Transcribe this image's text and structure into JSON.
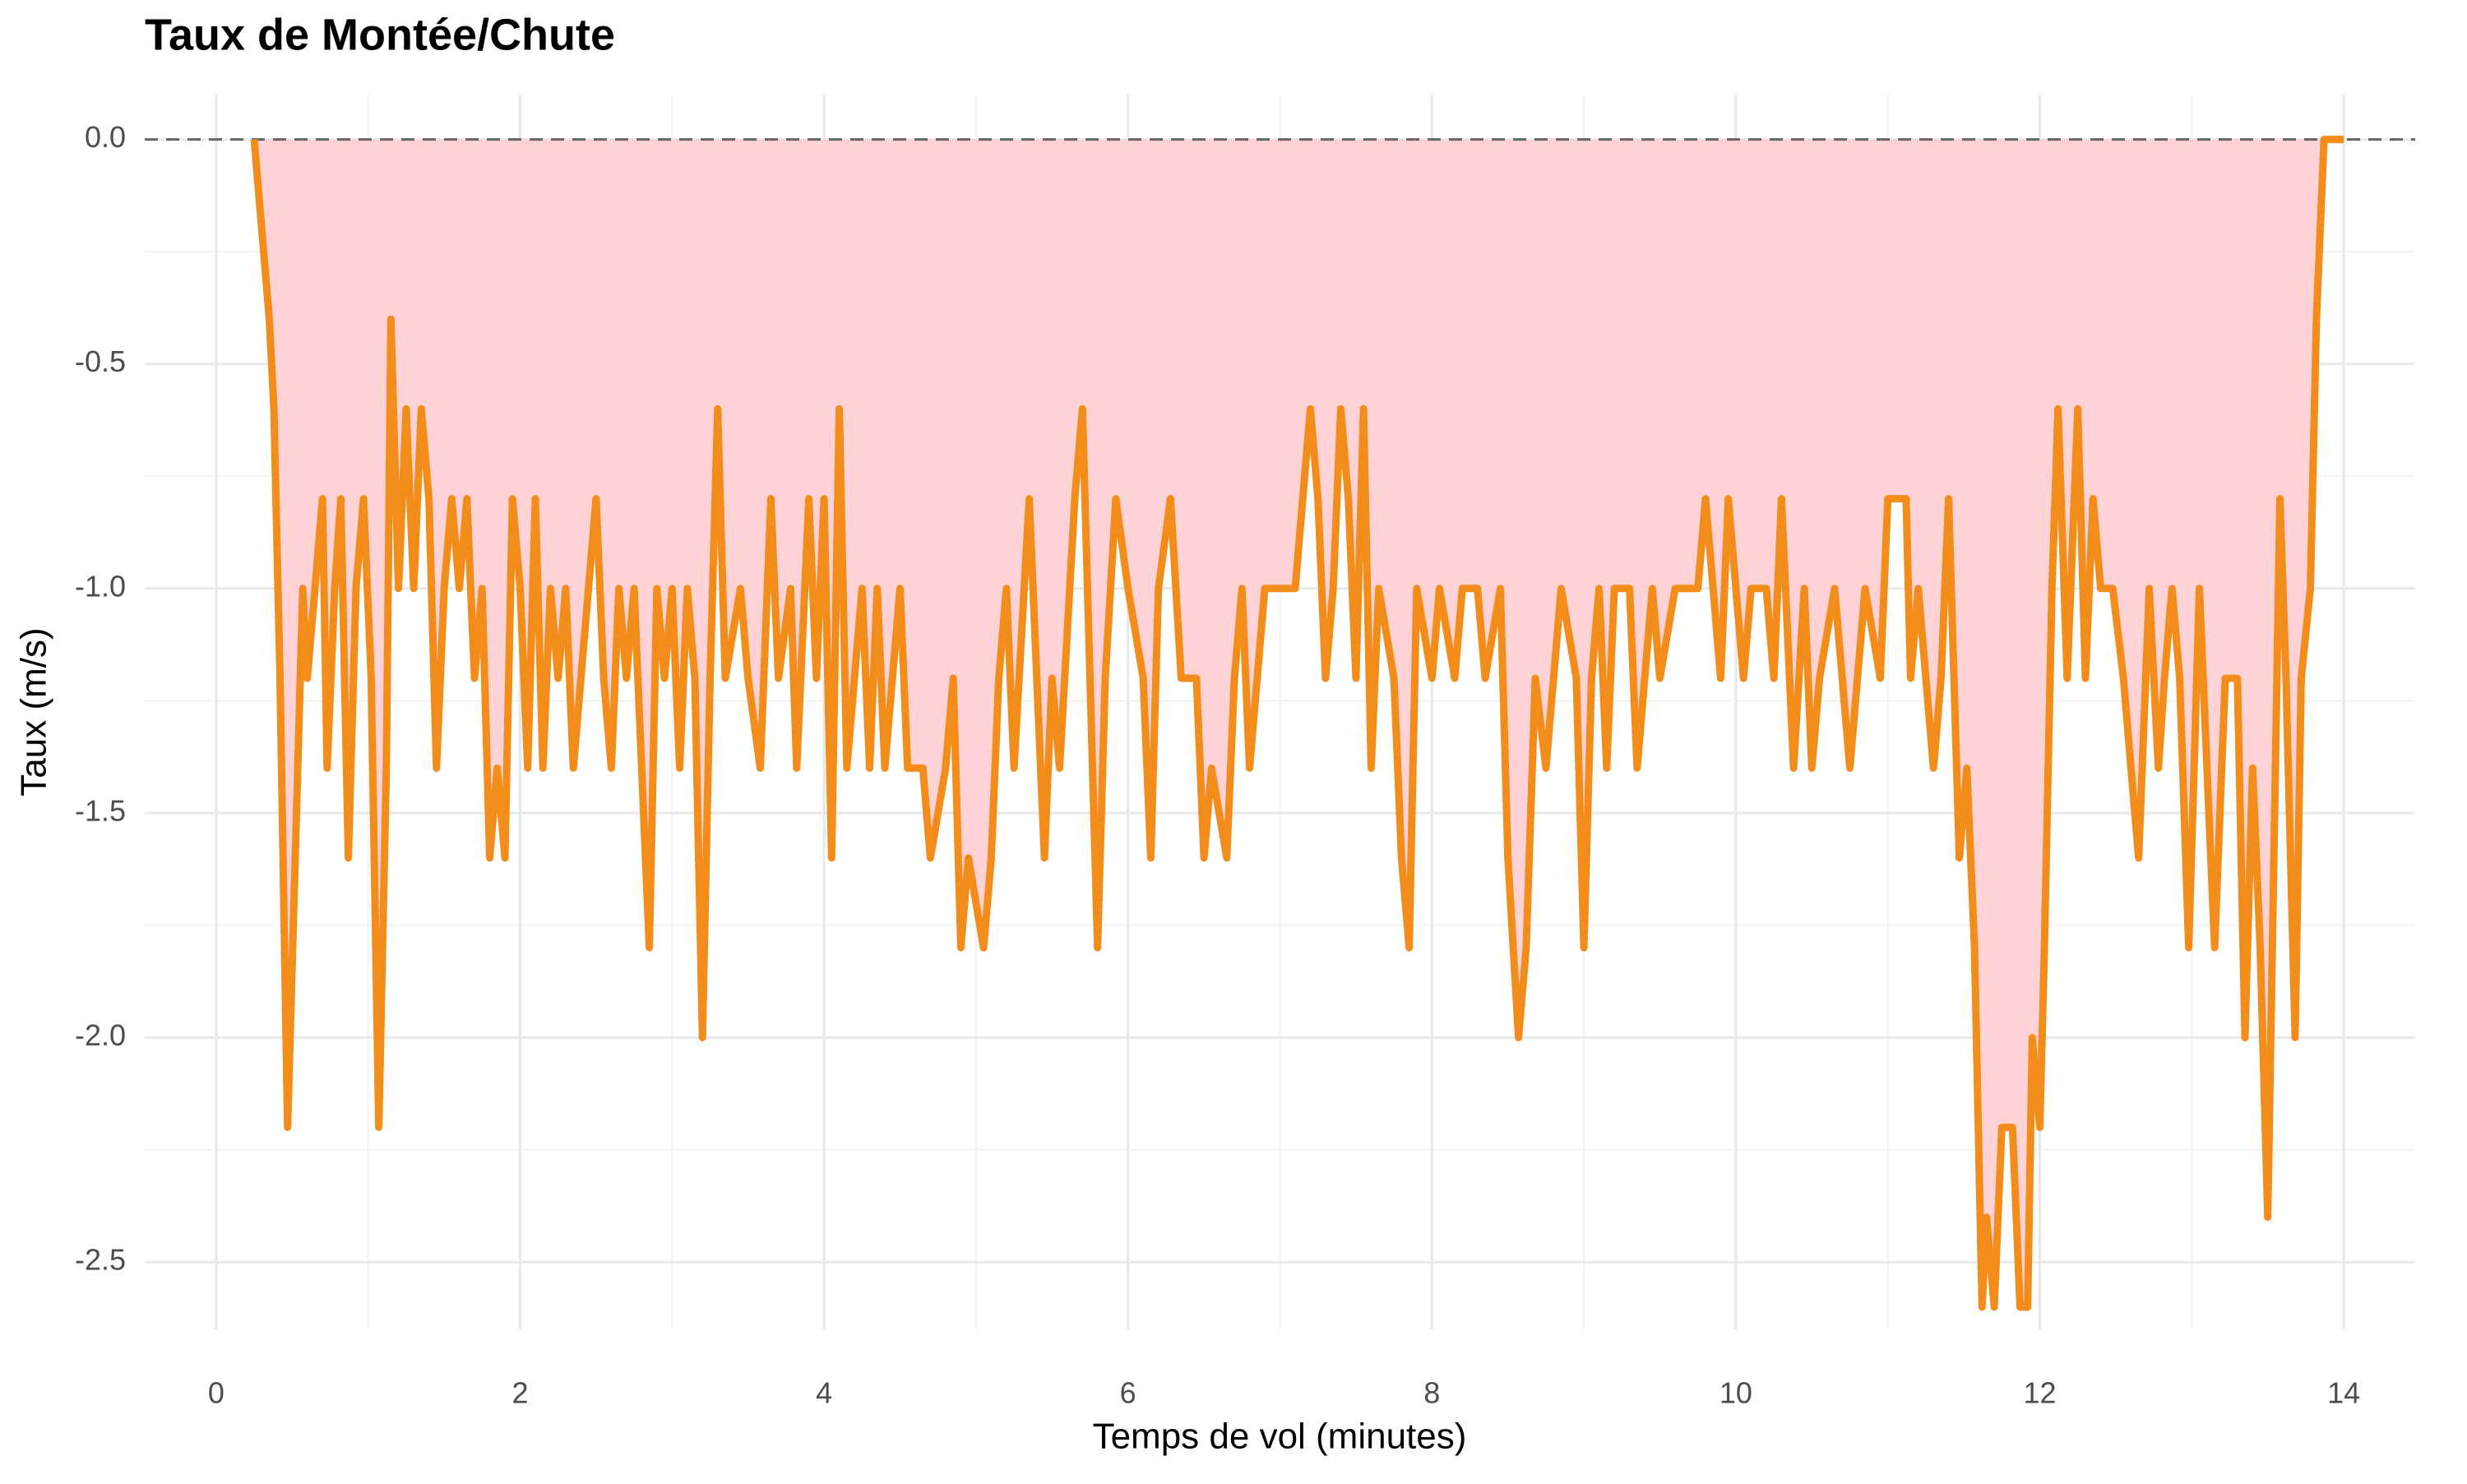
{
  "chart_data": {
    "type": "area",
    "title": "Taux de Montée/Chute",
    "x_label": "Temps de vol (minutes)",
    "y_label": "Taux (m/s)",
    "color": "#f28c1a",
    "fill_color": "#ffd3d6",
    "hline": 0,
    "grid": true,
    "xlim": [
      -0.47,
      14.47
    ],
    "ylim": [
      -2.65,
      0.1
    ],
    "xticks": [
      0,
      2,
      4,
      6,
      8,
      10,
      12,
      14
    ],
    "yticks": [
      {
        "value": 0,
        "label": "0.0"
      },
      -0.5,
      {
        "value": -1,
        "label": "-1.0"
      },
      -1.5,
      {
        "value": -2,
        "label": "-2.0"
      },
      -2.5
    ],
    "minor_xticks": [
      1,
      3,
      5,
      7,
      9,
      11,
      13
    ],
    "minor_yticks": [
      -0.25,
      -0.75,
      -1.25,
      -1.75,
      -2.25
    ],
    "x": [
      0.25,
      0.35,
      0.38,
      0.42,
      0.47,
      0.52,
      0.57,
      0.6,
      0.65,
      0.7,
      0.73,
      0.78,
      0.82,
      0.87,
      0.92,
      0.97,
      1.02,
      1.07,
      1.12,
      1.15,
      1.2,
      1.25,
      1.3,
      1.35,
      1.4,
      1.45,
      1.5,
      1.55,
      1.6,
      1.65,
      1.7,
      1.75,
      1.8,
      1.85,
      1.9,
      1.95,
      2.0,
      2.05,
      2.1,
      2.15,
      2.2,
      2.25,
      2.3,
      2.35,
      2.4,
      2.45,
      2.5,
      2.55,
      2.6,
      2.65,
      2.7,
      2.75,
      2.8,
      2.85,
      2.9,
      2.95,
      3.0,
      3.05,
      3.1,
      3.15,
      3.2,
      3.25,
      3.3,
      3.35,
      3.45,
      3.5,
      3.58,
      3.65,
      3.7,
      3.78,
      3.82,
      3.9,
      3.95,
      4.0,
      4.05,
      4.1,
      4.15,
      4.25,
      4.3,
      4.35,
      4.4,
      4.45,
      4.5,
      4.55,
      4.65,
      4.7,
      4.8,
      4.85,
      4.9,
      4.95,
      5.05,
      5.1,
      5.15,
      5.2,
      5.25,
      5.35,
      5.4,
      5.45,
      5.5,
      5.55,
      5.65,
      5.7,
      5.75,
      5.8,
      5.85,
      5.92,
      6.0,
      6.1,
      6.15,
      6.2,
      6.28,
      6.35,
      6.45,
      6.5,
      6.55,
      6.65,
      6.7,
      6.75,
      6.8,
      6.85,
      6.9,
      7.0,
      7.1,
      7.15,
      7.2,
      7.25,
      7.3,
      7.35,
      7.4,
      7.45,
      7.5,
      7.55,
      7.6,
      7.65,
      7.75,
      7.8,
      7.85,
      7.9,
      8.0,
      8.05,
      8.15,
      8.2,
      8.3,
      8.35,
      8.45,
      8.5,
      8.57,
      8.62,
      8.68,
      8.75,
      8.8,
      8.85,
      8.95,
      9.0,
      9.05,
      9.1,
      9.15,
      9.2,
      9.3,
      9.35,
      9.45,
      9.5,
      9.6,
      9.75,
      9.8,
      9.85,
      9.9,
      9.95,
      10.05,
      10.1,
      10.2,
      10.25,
      10.3,
      10.38,
      10.45,
      10.5,
      10.55,
      10.65,
      10.75,
      10.85,
      10.95,
      11.0,
      11.12,
      11.15,
      11.2,
      11.3,
      11.35,
      11.4,
      11.47,
      11.52,
      11.57,
      11.62,
      11.65,
      11.7,
      11.75,
      11.82,
      11.87,
      11.92,
      11.95,
      12.0,
      12.03,
      12.08,
      12.12,
      12.18,
      12.25,
      12.3,
      12.35,
      12.4,
      12.48,
      12.55,
      12.6,
      12.65,
      12.72,
      12.78,
      12.82,
      12.87,
      12.92,
      12.98,
      13.05,
      13.1,
      13.15,
      13.22,
      13.3,
      13.35,
      13.4,
      13.45,
      13.5,
      13.55,
      13.58,
      13.62,
      13.68,
      13.72,
      13.78,
      13.82,
      13.87,
      14.0
    ],
    "values": [
      0,
      -0.4,
      -0.6,
      -1.2,
      -2.2,
      -1.6,
      -1.0,
      -1.2,
      -1.0,
      -0.8,
      -1.4,
      -1.0,
      -0.8,
      -1.6,
      -1.0,
      -0.8,
      -1.2,
      -2.2,
      -1.4,
      -0.4,
      -1.0,
      -0.6,
      -1.0,
      -0.6,
      -0.8,
      -1.4,
      -1.0,
      -0.8,
      -1.0,
      -0.8,
      -1.2,
      -1.0,
      -1.6,
      -1.4,
      -1.6,
      -0.8,
      -1.0,
      -1.4,
      -0.8,
      -1.4,
      -1.0,
      -1.2,
      -1.0,
      -1.4,
      -1.2,
      -1.0,
      -0.8,
      -1.2,
      -1.4,
      -1.0,
      -1.2,
      -1.0,
      -1.4,
      -1.8,
      -1.0,
      -1.2,
      -1.0,
      -1.4,
      -1.0,
      -1.2,
      -2.0,
      -1.2,
      -0.6,
      -1.2,
      -1.0,
      -1.2,
      -1.4,
      -0.8,
      -1.2,
      -1.0,
      -1.4,
      -0.8,
      -1.2,
      -0.8,
      -1.6,
      -0.6,
      -1.4,
      -1.0,
      -1.4,
      -1.0,
      -1.4,
      -1.2,
      -1.0,
      -1.4,
      -1.4,
      -1.6,
      -1.4,
      -1.2,
      -1.8,
      -1.6,
      -1.8,
      -1.6,
      -1.2,
      -1.0,
      -1.4,
      -0.8,
      -1.2,
      -1.6,
      -1.2,
      -1.4,
      -0.8,
      -0.6,
      -1.2,
      -1.8,
      -1.2,
      -0.8,
      -1.0,
      -1.2,
      -1.6,
      -1.0,
      -0.8,
      -1.2,
      -1.2,
      -1.6,
      -1.4,
      -1.6,
      -1.2,
      -1.0,
      -1.4,
      -1.2,
      -1.0,
      -1.0,
      -1.0,
      -0.8,
      -0.6,
      -0.8,
      -1.2,
      -1.0,
      -0.6,
      -0.8,
      -1.2,
      -0.6,
      -1.4,
      -1.0,
      -1.2,
      -1.6,
      -1.8,
      -1.0,
      -1.2,
      -1.0,
      -1.2,
      -1.0,
      -1.0,
      -1.2,
      -1.0,
      -1.6,
      -2.0,
      -1.8,
      -1.2,
      -1.4,
      -1.2,
      -1.0,
      -1.2,
      -1.8,
      -1.2,
      -1.0,
      -1.4,
      -1.0,
      -1.0,
      -1.4,
      -1.0,
      -1.2,
      -1.0,
      -1.0,
      -0.8,
      -1.0,
      -1.2,
      -0.8,
      -1.2,
      -1.0,
      -1.0,
      -1.2,
      -0.8,
      -1.4,
      -1.0,
      -1.4,
      -1.2,
      -1.0,
      -1.4,
      -1.0,
      -1.2,
      -0.8,
      -0.8,
      -1.2,
      -1.0,
      -1.4,
      -1.2,
      -0.8,
      -1.6,
      -1.4,
      -1.8,
      -2.6,
      -2.4,
      -2.6,
      -2.2,
      -2.2,
      -2.6,
      -2.6,
      -2.0,
      -2.2,
      -1.8,
      -1.0,
      -0.6,
      -1.2,
      -0.6,
      -1.2,
      -0.8,
      -1.0,
      -1.0,
      -1.2,
      -1.4,
      -1.6,
      -1.0,
      -1.4,
      -1.2,
      -1.0,
      -1.2,
      -1.8,
      -1.0,
      -1.4,
      -1.8,
      -1.2,
      -1.2,
      -2.0,
      -1.4,
      -1.8,
      -2.4,
      -1.4,
      -0.8,
      -1.2,
      -2.0,
      -1.2,
      -1.0,
      -0.4,
      0,
      0
    ]
  }
}
